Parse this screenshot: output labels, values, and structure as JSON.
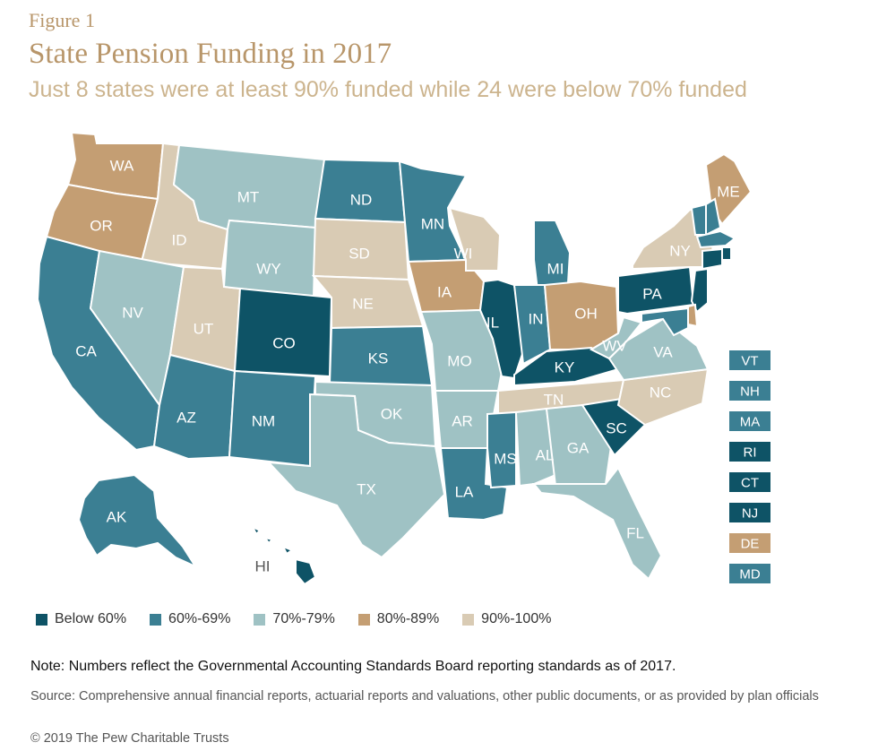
{
  "figure_label": "Figure 1",
  "title": "State Pension Funding in 2017",
  "subtitle": "Just 8 states were at least 90% funded while 24 were below 70% funded",
  "categories": {
    "c1": {
      "label": "Below 60%",
      "color": "#0e5366",
      "text": "#ffffff"
    },
    "c2": {
      "label": "60%-69%",
      "color": "#3b7f93",
      "text": "#ffffff"
    },
    "c3": {
      "label": "70%-79%",
      "color": "#9fc2c4",
      "text": "#ffffff"
    },
    "c4": {
      "label": "80%-89%",
      "color": "#c49e73",
      "text": "#ffffff"
    },
    "c5": {
      "label": "90%-100%",
      "color": "#d9cbb4",
      "text": "#ffffff"
    }
  },
  "legend_order": [
    "c1",
    "c2",
    "c3",
    "c4",
    "c5"
  ],
  "states": [
    {
      "abbr": "WA",
      "cat": "c4"
    },
    {
      "abbr": "OR",
      "cat": "c4"
    },
    {
      "abbr": "CA",
      "cat": "c2"
    },
    {
      "abbr": "ID",
      "cat": "c5"
    },
    {
      "abbr": "NV",
      "cat": "c3"
    },
    {
      "abbr": "UT",
      "cat": "c5"
    },
    {
      "abbr": "AZ",
      "cat": "c2"
    },
    {
      "abbr": "MT",
      "cat": "c3"
    },
    {
      "abbr": "WY",
      "cat": "c3"
    },
    {
      "abbr": "CO",
      "cat": "c1"
    },
    {
      "abbr": "NM",
      "cat": "c2"
    },
    {
      "abbr": "ND",
      "cat": "c2"
    },
    {
      "abbr": "SD",
      "cat": "c5"
    },
    {
      "abbr": "NE",
      "cat": "c5"
    },
    {
      "abbr": "KS",
      "cat": "c2"
    },
    {
      "abbr": "OK",
      "cat": "c3"
    },
    {
      "abbr": "TX",
      "cat": "c3"
    },
    {
      "abbr": "MN",
      "cat": "c2"
    },
    {
      "abbr": "IA",
      "cat": "c4"
    },
    {
      "abbr": "MO",
      "cat": "c3"
    },
    {
      "abbr": "AR",
      "cat": "c3"
    },
    {
      "abbr": "LA",
      "cat": "c2"
    },
    {
      "abbr": "WI",
      "cat": "c5"
    },
    {
      "abbr": "IL",
      "cat": "c1"
    },
    {
      "abbr": "MI",
      "cat": "c2"
    },
    {
      "abbr": "IN",
      "cat": "c2"
    },
    {
      "abbr": "OH",
      "cat": "c4"
    },
    {
      "abbr": "KY",
      "cat": "c1"
    },
    {
      "abbr": "TN",
      "cat": "c5"
    },
    {
      "abbr": "MS",
      "cat": "c2"
    },
    {
      "abbr": "AL",
      "cat": "c3"
    },
    {
      "abbr": "GA",
      "cat": "c3"
    },
    {
      "abbr": "FL",
      "cat": "c3"
    },
    {
      "abbr": "SC",
      "cat": "c1"
    },
    {
      "abbr": "NC",
      "cat": "c5"
    },
    {
      "abbr": "VA",
      "cat": "c3"
    },
    {
      "abbr": "WV",
      "cat": "c3"
    },
    {
      "abbr": "PA",
      "cat": "c1"
    },
    {
      "abbr": "NY",
      "cat": "c5"
    },
    {
      "abbr": "ME",
      "cat": "c4"
    },
    {
      "abbr": "AK",
      "cat": "c2"
    },
    {
      "abbr": "HI",
      "cat": "c1"
    }
  ],
  "small_states": [
    {
      "abbr": "VT",
      "cat": "c2"
    },
    {
      "abbr": "NH",
      "cat": "c2"
    },
    {
      "abbr": "MA",
      "cat": "c2"
    },
    {
      "abbr": "RI",
      "cat": "c1"
    },
    {
      "abbr": "CT",
      "cat": "c1"
    },
    {
      "abbr": "NJ",
      "cat": "c1"
    },
    {
      "abbr": "DE",
      "cat": "c4"
    },
    {
      "abbr": "MD",
      "cat": "c2"
    }
  ],
  "note": "Note: Numbers reflect the Governmental Accounting Standards Board reporting standards as of 2017.",
  "source": "Source: Comprehensive annual financial reports, actuarial reports and valuations, other public documents, or as provided by plan officials",
  "copyright": "© 2019 The Pew Charitable Trusts"
}
